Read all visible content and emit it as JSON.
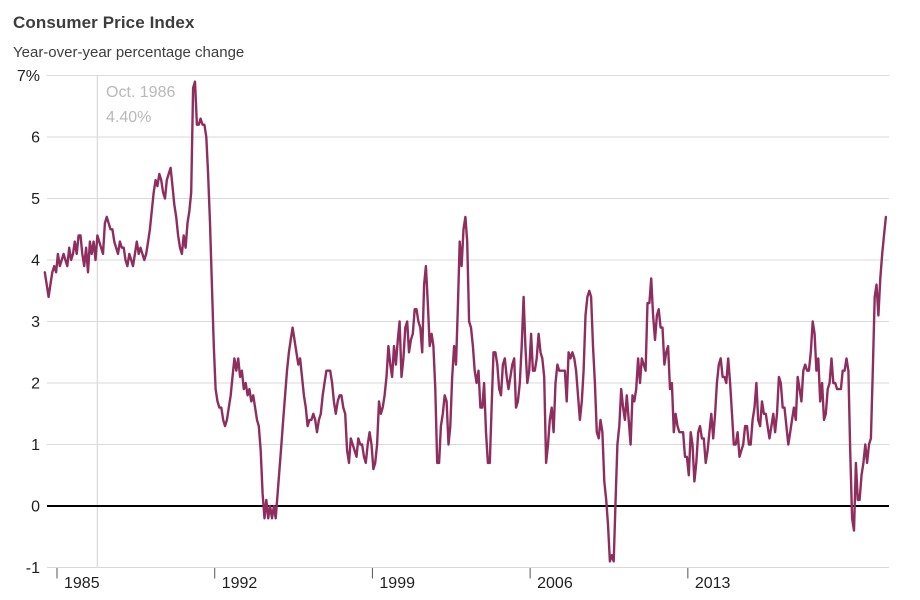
{
  "header": {
    "title": "Consumer Price Index",
    "subtitle": "Year-over-year percentage change"
  },
  "tooltip": {
    "date_label": "Oct. 1986",
    "value_label": "4.40%"
  },
  "colors": {
    "line": "#8e2e5e",
    "grid": "#d9d9d9",
    "zero_line": "#000000",
    "crosshair": "#dcdcdc",
    "tick": "#555555",
    "axis_text": "#1f1f1f",
    "muted_text": "#b9b9b9",
    "title_text": "#3d3d3d"
  },
  "chart_data": {
    "type": "line",
    "title": "Consumer Price Index",
    "subtitle": "Year-over-year percentage change",
    "unit": "percent",
    "frequency": "monthly",
    "x_start": {
      "year": 1984,
      "month": 6
    },
    "x_end": {
      "year": 2021,
      "month": 10
    },
    "ylim": [
      -1,
      7
    ],
    "grid": true,
    "legend": false,
    "y_ticks": [
      {
        "label": "7%",
        "value": 7
      },
      {
        "label": "6",
        "value": 6
      },
      {
        "label": "5",
        "value": 5
      },
      {
        "label": "4",
        "value": 4
      },
      {
        "label": "3",
        "value": 3
      },
      {
        "label": "2",
        "value": 2
      },
      {
        "label": "1",
        "value": 1
      },
      {
        "label": "0",
        "value": 0
      },
      {
        "label": "-1",
        "value": -1
      }
    ],
    "x_ticks": [
      {
        "label": "1985",
        "year": 1985
      },
      {
        "label": "1992",
        "year": 1992
      },
      {
        "label": "1999",
        "year": 1999
      },
      {
        "label": "2006",
        "year": 2006
      },
      {
        "label": "2013",
        "year": 2013
      }
    ],
    "highlight": {
      "date": "Oct. 1986",
      "value": 4.4,
      "index": 28
    },
    "values": [
      3.8,
      3.6,
      3.4,
      3.6,
      3.8,
      3.9,
      3.8,
      4.1,
      3.9,
      4.0,
      4.1,
      4.0,
      3.9,
      4.2,
      4.0,
      4.1,
      4.3,
      4.1,
      4.4,
      4.4,
      4.1,
      3.9,
      4.2,
      3.8,
      4.3,
      4.1,
      4.3,
      4.0,
      4.4,
      4.3,
      4.2,
      4.1,
      4.6,
      4.7,
      4.6,
      4.5,
      4.5,
      4.3,
      4.2,
      4.1,
      4.3,
      4.2,
      4.2,
      4.0,
      3.9,
      4.1,
      4.0,
      3.9,
      4.1,
      4.3,
      4.1,
      4.2,
      4.1,
      4.0,
      4.1,
      4.3,
      4.5,
      4.8,
      5.1,
      5.3,
      5.2,
      5.4,
      5.3,
      5.1,
      5.0,
      5.3,
      5.4,
      5.5,
      5.2,
      4.9,
      4.7,
      4.4,
      4.2,
      4.1,
      4.4,
      4.2,
      4.6,
      4.8,
      5.1,
      6.8,
      6.9,
      6.2,
      6.2,
      6.3,
      6.2,
      6.2,
      6.0,
      5.4,
      4.6,
      3.6,
      2.6,
      1.9,
      1.7,
      1.6,
      1.6,
      1.4,
      1.3,
      1.4,
      1.6,
      1.8,
      2.1,
      2.4,
      2.2,
      2.4,
      2.1,
      2.2,
      1.9,
      2.0,
      1.8,
      1.9,
      1.7,
      1.8,
      1.6,
      1.4,
      1.3,
      0.9,
      0.2,
      -0.2,
      0.1,
      -0.2,
      0.0,
      -0.2,
      0.0,
      -0.2,
      0.2,
      0.6,
      1.0,
      1.4,
      1.8,
      2.2,
      2.5,
      2.7,
      2.9,
      2.7,
      2.5,
      2.3,
      2.4,
      2.1,
      1.8,
      1.6,
      1.3,
      1.4,
      1.4,
      1.5,
      1.4,
      1.2,
      1.4,
      1.5,
      1.8,
      2.0,
      2.2,
      2.2,
      2.2,
      2.0,
      1.7,
      1.5,
      1.7,
      1.8,
      1.8,
      1.6,
      1.5,
      0.9,
      0.7,
      1.1,
      1.0,
      0.9,
      0.8,
      1.1,
      1.0,
      1.0,
      0.8,
      0.7,
      1.0,
      1.2,
      1.0,
      0.6,
      0.7,
      1.0,
      1.7,
      1.5,
      1.6,
      1.8,
      2.1,
      2.6,
      2.3,
      2.1,
      2.6,
      2.3,
      2.7,
      3.0,
      2.1,
      2.4,
      2.9,
      3.0,
      2.5,
      2.7,
      2.8,
      3.2,
      3.2,
      3.0,
      2.9,
      2.5,
      3.6,
      3.9,
      3.3,
      2.6,
      2.8,
      2.6,
      1.9,
      0.7,
      0.7,
      1.3,
      1.5,
      1.8,
      1.7,
      1.0,
      1.3,
      2.1,
      2.6,
      2.3,
      3.2,
      4.3,
      3.9,
      4.5,
      4.7,
      4.3,
      3.0,
      2.9,
      2.6,
      2.2,
      2.0,
      2.2,
      1.6,
      1.6,
      2.0,
      1.2,
      0.7,
      0.7,
      1.6,
      2.5,
      2.5,
      2.3,
      1.9,
      1.8,
      2.3,
      2.4,
      2.1,
      1.9,
      2.1,
      2.3,
      2.4,
      1.6,
      1.7,
      2.0,
      2.6,
      3.4,
      2.6,
      2.0,
      2.2,
      2.8,
      2.2,
      2.2,
      2.4,
      2.8,
      2.5,
      2.4,
      2.1,
      0.7,
      1.0,
      1.4,
      1.6,
      1.2,
      2.0,
      2.3,
      2.2,
      2.2,
      2.2,
      2.2,
      1.7,
      2.5,
      2.4,
      2.5,
      2.4,
      2.2,
      1.8,
      1.4,
      1.7,
      2.2,
      3.1,
      3.4,
      3.5,
      3.4,
      2.6,
      2.0,
      1.2,
      1.1,
      1.4,
      1.2,
      0.4,
      0.1,
      -0.3,
      -0.9,
      -0.8,
      -0.9,
      0.1,
      1.0,
      1.3,
      1.9,
      1.6,
      1.4,
      1.8,
      1.4,
      1.0,
      1.8,
      1.7,
      1.9,
      2.4,
      2.0,
      2.4,
      2.3,
      2.2,
      3.3,
      3.3,
      3.7,
      3.1,
      2.7,
      3.1,
      3.2,
      2.9,
      2.9,
      2.3,
      2.5,
      2.6,
      1.9,
      2.0,
      1.2,
      1.5,
      1.3,
      1.2,
      1.2,
      1.2,
      0.8,
      0.8,
      0.5,
      1.2,
      1.0,
      0.4,
      0.7,
      1.2,
      1.3,
      1.1,
      1.1,
      0.7,
      0.9,
      1.2,
      1.5,
      1.1,
      1.5,
      2.0,
      2.3,
      2.4,
      2.1,
      2.1,
      2.0,
      2.4,
      2.0,
      1.5,
      1.0,
      1.0,
      1.2,
      0.8,
      0.9,
      1.0,
      1.3,
      1.3,
      1.0,
      1.0,
      1.4,
      1.6,
      2.0,
      1.4,
      1.3,
      1.7,
      1.5,
      1.5,
      1.3,
      1.1,
      1.3,
      1.5,
      1.2,
      1.5,
      2.1,
      2.0,
      1.6,
      1.6,
      1.3,
      1.0,
      1.2,
      1.4,
      1.6,
      1.4,
      2.1,
      1.9,
      1.7,
      2.2,
      2.3,
      2.2,
      2.2,
      2.5,
      3.0,
      2.8,
      2.2,
      2.4,
      1.7,
      2.0,
      1.4,
      1.5,
      1.9,
      2.0,
      2.4,
      2.0,
      2.0,
      1.9,
      1.9,
      1.9,
      2.2,
      2.2,
      2.4,
      2.2,
      0.9,
      -0.2,
      -0.4,
      0.7,
      0.1,
      0.1,
      0.5,
      0.7,
      1.0,
      0.7,
      1.0,
      1.1,
      2.2,
      3.4,
      3.6,
      3.1,
      3.7,
      4.1,
      4.4,
      4.7
    ]
  }
}
